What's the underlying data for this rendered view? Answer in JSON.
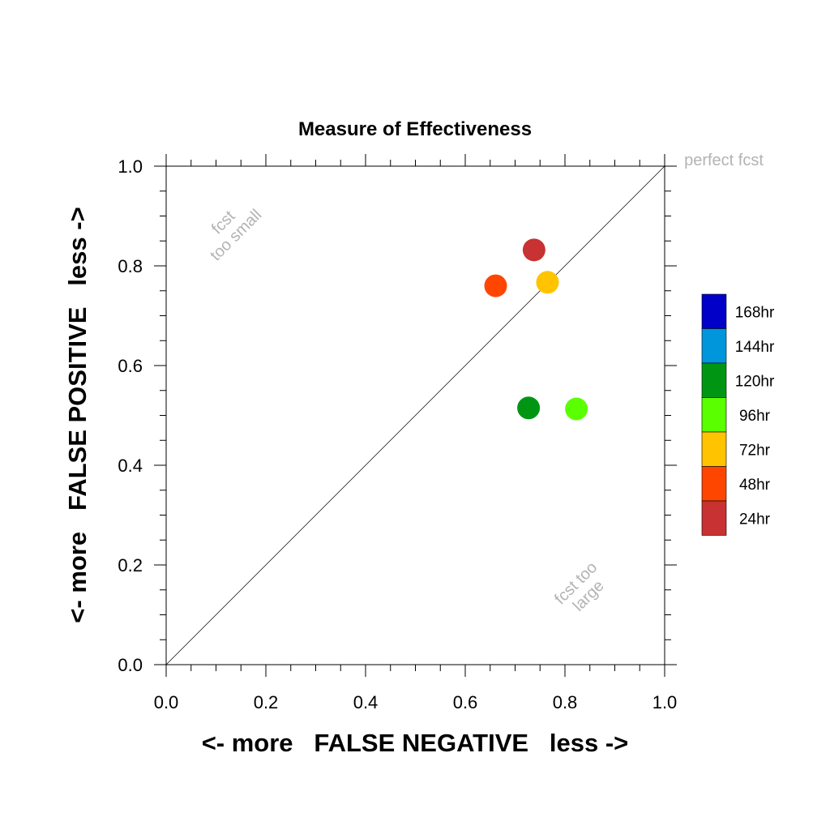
{
  "chart_data": {
    "type": "scatter",
    "title": "Measure of Effectiveness",
    "xlabel": "<- more   FALSE NEGATIVE   less ->",
    "ylabel": "<- more   FALSE POSITIVE   less ->",
    "xlim": [
      0.0,
      1.0
    ],
    "ylim": [
      0.0,
      1.0
    ],
    "x_ticks": [
      "0.0",
      "0.2",
      "0.4",
      "0.6",
      "0.8",
      "1.0"
    ],
    "y_ticks": [
      "0.0",
      "0.2",
      "0.4",
      "0.6",
      "0.8",
      "1.0"
    ],
    "grid": false,
    "diagonal_line": true,
    "annotations": {
      "perfect": "perfect fcst",
      "too_small_line1": "fcst",
      "too_small_line2": "too small",
      "too_large_line1": "fcst too",
      "too_large_line2": "large"
    },
    "legend": [
      {
        "label": "168hr",
        "color": "#0000c8"
      },
      {
        "label": "144hr",
        "color": "#0096dc"
      },
      {
        "label": "120hr",
        "color": "#009614"
      },
      {
        "label": "96hr",
        "color": "#5aff00"
      },
      {
        "label": "72hr",
        "color": "#ffc300"
      },
      {
        "label": "48hr",
        "color": "#ff4600"
      },
      {
        "label": "24hr",
        "color": "#c83232"
      }
    ],
    "points": [
      {
        "label": "24hr",
        "x": 0.738,
        "y": 0.832,
        "color": "#c83232"
      },
      {
        "label": "48hr",
        "x": 0.661,
        "y": 0.76,
        "color": "#ff4600"
      },
      {
        "label": "72hr",
        "x": 0.765,
        "y": 0.767,
        "color": "#ffc300"
      },
      {
        "label": "96hr",
        "x": 0.823,
        "y": 0.513,
        "color": "#5aff00"
      },
      {
        "label": "120hr",
        "x": 0.727,
        "y": 0.515,
        "color": "#009614"
      }
    ]
  }
}
